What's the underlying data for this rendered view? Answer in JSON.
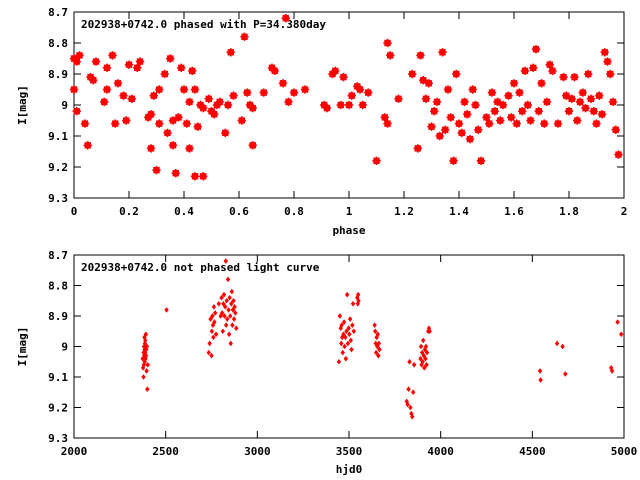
{
  "chart_data": [
    {
      "type": "scatter",
      "title": "202938+0742.0 phased with P=34.380day",
      "xlabel": "phase",
      "ylabel": "I[mag]",
      "xlim": [
        0,
        2
      ],
      "ylim": [
        8.7,
        9.3
      ],
      "y_inverted": true,
      "x_ticks": [
        0,
        0.2,
        0.4,
        0.6,
        0.8,
        1,
        1.2,
        1.4,
        1.6,
        1.8,
        2
      ],
      "x_tick_labels": [
        "0",
        "0.2",
        "0.4",
        "0.6",
        "0.8",
        "1",
        "1.2",
        "1.4",
        "1.6",
        "1.8",
        "2"
      ],
      "y_ticks": [
        8.7,
        8.8,
        8.9,
        9.0,
        9.1,
        9.2,
        9.3
      ],
      "y_tick_labels": [
        "8.7",
        "8.8",
        "8.9",
        "9",
        "9.1",
        "9.2",
        "9.3"
      ],
      "marker_color": "#ff0000",
      "points": [
        [
          0.0,
          8.85
        ],
        [
          0.0,
          8.95
        ],
        [
          0.01,
          9.02
        ],
        [
          0.01,
          8.86
        ],
        [
          0.02,
          8.84
        ],
        [
          0.04,
          9.06
        ],
        [
          0.05,
          9.13
        ],
        [
          0.06,
          8.91
        ],
        [
          0.07,
          8.92
        ],
        [
          0.08,
          8.86
        ],
        [
          0.11,
          8.99
        ],
        [
          0.12,
          8.88
        ],
        [
          0.12,
          8.95
        ],
        [
          0.14,
          8.84
        ],
        [
          0.15,
          9.06
        ],
        [
          0.16,
          8.93
        ],
        [
          0.18,
          8.97
        ],
        [
          0.19,
          9.05
        ],
        [
          0.2,
          8.87
        ],
        [
          0.21,
          8.98
        ],
        [
          0.23,
          8.88
        ],
        [
          0.24,
          8.86
        ],
        [
          0.27,
          9.04
        ],
        [
          0.28,
          9.14
        ],
        [
          0.28,
          9.03
        ],
        [
          0.29,
          8.97
        ],
        [
          0.3,
          9.21
        ],
        [
          0.31,
          8.95
        ],
        [
          0.31,
          9.06
        ],
        [
          0.33,
          8.9
        ],
        [
          0.34,
          9.09
        ],
        [
          0.35,
          8.85
        ],
        [
          0.36,
          9.05
        ],
        [
          0.36,
          9.13
        ],
        [
          0.37,
          9.22
        ],
        [
          0.38,
          9.04
        ],
        [
          0.39,
          8.88
        ],
        [
          0.4,
          8.95
        ],
        [
          0.41,
          9.06
        ],
        [
          0.42,
          8.99
        ],
        [
          0.42,
          9.14
        ],
        [
          0.43,
          8.89
        ],
        [
          0.44,
          9.23
        ],
        [
          0.44,
          8.95
        ],
        [
          0.45,
          9.07
        ],
        [
          0.46,
          9.0
        ],
        [
          0.47,
          9.23
        ],
        [
          0.47,
          9.01
        ],
        [
          0.49,
          8.98
        ],
        [
          0.5,
          9.02
        ],
        [
          0.51,
          9.03
        ],
        [
          0.52,
          9.0
        ],
        [
          0.53,
          8.99
        ],
        [
          0.55,
          9.09
        ],
        [
          0.56,
          9.0
        ],
        [
          0.57,
          8.83
        ],
        [
          0.58,
          8.97
        ],
        [
          0.61,
          9.05
        ],
        [
          0.62,
          8.78
        ],
        [
          0.63,
          8.96
        ],
        [
          0.64,
          9.0
        ],
        [
          0.65,
          9.01
        ],
        [
          0.65,
          9.13
        ],
        [
          0.69,
          8.96
        ],
        [
          0.72,
          8.88
        ],
        [
          0.73,
          8.89
        ],
        [
          0.76,
          8.93
        ],
        [
          0.77,
          8.72
        ],
        [
          0.78,
          8.99
        ],
        [
          0.8,
          8.96
        ],
        [
          0.84,
          8.95
        ],
        [
          0.91,
          9.0
        ],
        [
          0.92,
          9.01
        ],
        [
          0.94,
          8.9
        ],
        [
          0.95,
          8.89
        ],
        [
          0.97,
          9.0
        ],
        [
          0.98,
          8.91
        ],
        [
          1.0,
          9.0
        ],
        [
          1.01,
          8.97
        ],
        [
          1.03,
          8.94
        ],
        [
          1.04,
          8.95
        ],
        [
          1.05,
          9.0
        ],
        [
          1.07,
          8.96
        ],
        [
          1.1,
          9.18
        ],
        [
          1.13,
          9.04
        ],
        [
          1.14,
          9.06
        ],
        [
          1.14,
          8.8
        ],
        [
          1.15,
          8.84
        ],
        [
          1.18,
          8.98
        ],
        [
          1.23,
          8.9
        ],
        [
          1.25,
          9.14
        ],
        [
          1.26,
          8.84
        ],
        [
          1.27,
          8.92
        ],
        [
          1.28,
          8.98
        ],
        [
          1.29,
          8.93
        ],
        [
          1.3,
          9.07
        ],
        [
          1.31,
          9.02
        ],
        [
          1.32,
          8.99
        ],
        [
          1.33,
          9.1
        ],
        [
          1.34,
          8.83
        ],
        [
          1.35,
          9.08
        ],
        [
          1.36,
          8.95
        ],
        [
          1.37,
          9.04
        ],
        [
          1.38,
          9.18
        ],
        [
          1.39,
          8.9
        ],
        [
          1.4,
          9.06
        ],
        [
          1.41,
          9.09
        ],
        [
          1.42,
          8.99
        ],
        [
          1.43,
          9.03
        ],
        [
          1.44,
          9.11
        ],
        [
          1.45,
          8.95
        ],
        [
          1.46,
          9.0
        ],
        [
          1.47,
          9.08
        ],
        [
          1.48,
          9.18
        ],
        [
          1.5,
          9.04
        ],
        [
          1.51,
          9.06
        ],
        [
          1.52,
          8.96
        ],
        [
          1.53,
          9.02
        ],
        [
          1.54,
          8.99
        ],
        [
          1.55,
          9.05
        ],
        [
          1.56,
          9.0
        ],
        [
          1.58,
          8.97
        ],
        [
          1.59,
          9.04
        ],
        [
          1.6,
          8.93
        ],
        [
          1.61,
          9.06
        ],
        [
          1.62,
          8.96
        ],
        [
          1.63,
          9.02
        ],
        [
          1.64,
          8.89
        ],
        [
          1.65,
          9.0
        ],
        [
          1.66,
          9.05
        ],
        [
          1.67,
          8.88
        ],
        [
          1.68,
          8.82
        ],
        [
          1.69,
          9.02
        ],
        [
          1.7,
          8.93
        ],
        [
          1.71,
          9.06
        ],
        [
          1.72,
          8.99
        ],
        [
          1.73,
          8.87
        ],
        [
          1.74,
          8.89
        ],
        [
          1.76,
          9.06
        ],
        [
          1.78,
          8.91
        ],
        [
          1.79,
          8.97
        ],
        [
          1.8,
          9.02
        ],
        [
          1.81,
          8.98
        ],
        [
          1.82,
          8.91
        ],
        [
          1.83,
          9.05
        ],
        [
          1.84,
          8.99
        ],
        [
          1.85,
          8.96
        ],
        [
          1.86,
          9.01
        ],
        [
          1.87,
          8.9
        ],
        [
          1.88,
          8.98
        ],
        [
          1.89,
          9.02
        ],
        [
          1.9,
          9.06
        ],
        [
          1.91,
          8.97
        ],
        [
          1.92,
          9.03
        ],
        [
          1.93,
          8.83
        ],
        [
          1.94,
          8.86
        ],
        [
          1.95,
          8.9
        ],
        [
          1.96,
          8.99
        ],
        [
          1.97,
          9.08
        ],
        [
          1.98,
          9.16
        ]
      ]
    },
    {
      "type": "scatter",
      "title": "202938+0742.0 not phased light curve",
      "xlabel": "hjd0",
      "ylabel": "I[mag]",
      "xlim": [
        2000,
        5000
      ],
      "ylim": [
        8.7,
        9.3
      ],
      "y_inverted": true,
      "x_ticks": [
        2000,
        2500,
        3000,
        3500,
        4000,
        4500,
        5000
      ],
      "x_tick_labels": [
        "2000",
        "2500",
        "3000",
        "3500",
        "4000",
        "4500",
        "5000"
      ],
      "y_ticks": [
        8.7,
        8.8,
        8.9,
        9.0,
        9.1,
        9.2,
        9.3
      ],
      "y_tick_labels": [
        "8.7",
        "8.8",
        "8.9",
        "9",
        "9.1",
        "9.2",
        "9.3"
      ],
      "marker_color": "#ff0000",
      "points": [
        [
          2375,
          9.04
        ],
        [
          2377,
          9.07
        ],
        [
          2379,
          9.1
        ],
        [
          2380,
          9.02
        ],
        [
          2381,
          9.06
        ],
        [
          2382,
          9.0
        ],
        [
          2383,
          9.03
        ],
        [
          2384,
          8.97
        ],
        [
          2385,
          9.01
        ],
        [
          2386,
          9.05
        ],
        [
          2387,
          8.99
        ],
        [
          2388,
          9.02
        ],
        [
          2389,
          8.98
        ],
        [
          2390,
          9.04
        ],
        [
          2391,
          9.0
        ],
        [
          2392,
          8.96
        ],
        [
          2393,
          9.03
        ],
        [
          2394,
          9.01
        ],
        [
          2396,
          9.08
        ],
        [
          2398,
          9.0
        ],
        [
          2400,
          9.14
        ],
        [
          2402,
          9.06
        ],
        [
          2505,
          8.88
        ],
        [
          2735,
          9.02
        ],
        [
          2740,
          8.99
        ],
        [
          2745,
          8.91
        ],
        [
          2750,
          9.03
        ],
        [
          2752,
          8.95
        ],
        [
          2755,
          8.9
        ],
        [
          2758,
          8.93
        ],
        [
          2760,
          8.97
        ],
        [
          2763,
          8.87
        ],
        [
          2766,
          8.92
        ],
        [
          2770,
          8.89
        ],
        [
          2775,
          8.96
        ],
        [
          2790,
          8.86
        ],
        [
          2800,
          8.9
        ],
        [
          2805,
          8.84
        ],
        [
          2808,
          8.89
        ],
        [
          2812,
          8.95
        ],
        [
          2815,
          8.86
        ],
        [
          2818,
          8.83
        ],
        [
          2821,
          8.9
        ],
        [
          2825,
          8.87
        ],
        [
          2828,
          8.72
        ],
        [
          2830,
          8.93
        ],
        [
          2833,
          8.85
        ],
        [
          2836,
          8.91
        ],
        [
          2840,
          8.78
        ],
        [
          2843,
          8.88
        ],
        [
          2846,
          8.96
        ],
        [
          2849,
          8.84
        ],
        [
          2852,
          8.9
        ],
        [
          2855,
          8.99
        ],
        [
          2858,
          8.86
        ],
        [
          2861,
          8.82
        ],
        [
          2864,
          8.93
        ],
        [
          2867,
          8.88
        ],
        [
          2870,
          8.85
        ],
        [
          2873,
          8.91
        ],
        [
          2876,
          8.87
        ],
        [
          2880,
          8.89
        ],
        [
          2885,
          8.94
        ],
        [
          3445,
          9.05
        ],
        [
          3450,
          8.9
        ],
        [
          3455,
          8.94
        ],
        [
          3458,
          8.99
        ],
        [
          3460,
          8.93
        ],
        [
          3463,
          8.97
        ],
        [
          3466,
          9.02
        ],
        [
          3470,
          8.96
        ],
        [
          3473,
          8.92
        ],
        [
          3476,
          9.0
        ],
        [
          3480,
          8.97
        ],
        [
          3483,
          9.04
        ],
        [
          3486,
          8.95
        ],
        [
          3490,
          8.83
        ],
        [
          3494,
          8.99
        ],
        [
          3498,
          8.94
        ],
        [
          3502,
          8.96
        ],
        [
          3506,
          8.91
        ],
        [
          3510,
          8.98
        ],
        [
          3514,
          9.01
        ],
        [
          3518,
          8.93
        ],
        [
          3522,
          8.86
        ],
        [
          3526,
          8.95
        ],
        [
          3545,
          8.84
        ],
        [
          3548,
          8.86
        ],
        [
          3550,
          8.83
        ],
        [
          3552,
          8.85
        ],
        [
          3640,
          8.93
        ],
        [
          3643,
          8.95
        ],
        [
          3646,
          8.99
        ],
        [
          3648,
          9.02
        ],
        [
          3651,
          8.97
        ],
        [
          3654,
          9.0
        ],
        [
          3657,
          8.96
        ],
        [
          3660,
          9.03
        ],
        [
          3663,
          8.99
        ],
        [
          3666,
          9.01
        ],
        [
          3815,
          9.18
        ],
        [
          3820,
          9.19
        ],
        [
          3825,
          9.14
        ],
        [
          3830,
          9.05
        ],
        [
          3835,
          9.2
        ],
        [
          3840,
          9.22
        ],
        [
          3845,
          9.23
        ],
        [
          3850,
          9.15
        ],
        [
          3855,
          9.06
        ],
        [
          3890,
          9.04
        ],
        [
          3893,
          9.0
        ],
        [
          3896,
          9.06
        ],
        [
          3899,
          9.02
        ],
        [
          3902,
          9.05
        ],
        [
          3905,
          8.98
        ],
        [
          3908,
          9.03
        ],
        [
          3911,
          9.07
        ],
        [
          3914,
          9.01
        ],
        [
          3917,
          9.04
        ],
        [
          3920,
          9.0
        ],
        [
          3923,
          9.06
        ],
        [
          3926,
          9.02
        ],
        [
          3932,
          8.95
        ],
        [
          3936,
          8.94
        ],
        [
          3940,
          8.95
        ],
        [
          4542,
          9.08
        ],
        [
          4545,
          9.11
        ],
        [
          4635,
          8.99
        ],
        [
          4665,
          9.0
        ],
        [
          4680,
          9.09
        ],
        [
          4930,
          9.07
        ],
        [
          4935,
          9.08
        ],
        [
          4965,
          8.92
        ],
        [
          4985,
          8.96
        ]
      ]
    }
  ]
}
